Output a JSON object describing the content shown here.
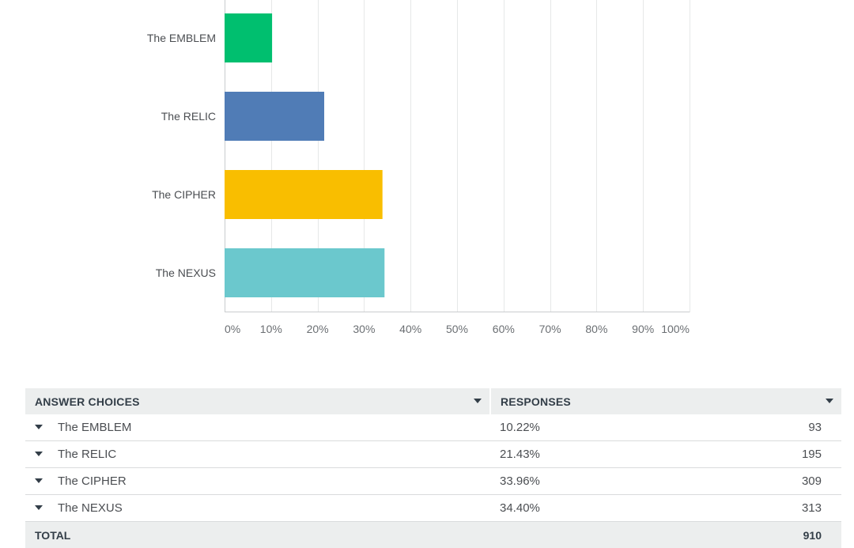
{
  "chart_data": {
    "type": "bar",
    "orientation": "horizontal",
    "categories": [
      "The EMBLEM",
      "The RELIC",
      "The CIPHER",
      "The NEXUS"
    ],
    "values": [
      10.22,
      21.43,
      33.96,
      34.4
    ],
    "colors": [
      "#00bf6f",
      "#507cb6",
      "#f9be00",
      "#6bc8cd"
    ],
    "xlim": [
      0,
      100
    ],
    "x_ticks": [
      "0%",
      "10%",
      "20%",
      "30%",
      "40%",
      "50%",
      "60%",
      "70%",
      "80%",
      "90%",
      "100%"
    ],
    "grid": true,
    "title": "",
    "xlabel": "",
    "ylabel": ""
  },
  "table": {
    "headers": {
      "choices": "ANSWER CHOICES",
      "responses": "RESPONSES"
    },
    "rows": [
      {
        "choice": "The EMBLEM",
        "percent": "10.22%",
        "count": "93"
      },
      {
        "choice": "The RELIC",
        "percent": "21.43%",
        "count": "195"
      },
      {
        "choice": "The CIPHER",
        "percent": "33.96%",
        "count": "309"
      },
      {
        "choice": "The NEXUS",
        "percent": "34.40%",
        "count": "313"
      }
    ],
    "total_label": "TOTAL",
    "total_count": "910"
  }
}
